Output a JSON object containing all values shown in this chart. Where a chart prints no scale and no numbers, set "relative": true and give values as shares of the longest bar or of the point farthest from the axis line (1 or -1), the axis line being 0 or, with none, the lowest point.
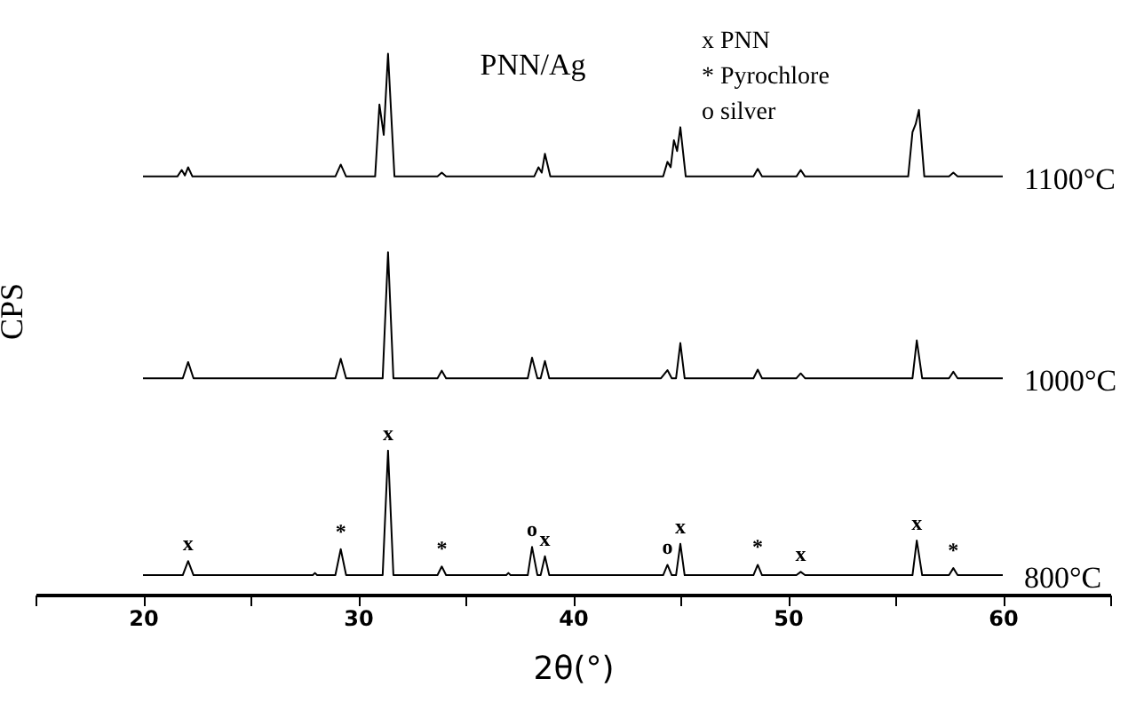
{
  "chart_data": {
    "type": "line",
    "title": "PNN/Ag",
    "xlabel": "2θ(°)",
    "ylabel": "CPS",
    "relative": true,
    "xlim": [
      15,
      65
    ],
    "xticks": [
      {
        "value": 15,
        "label": null
      },
      20,
      {
        "value": 25,
        "label": null
      },
      30,
      {
        "value": 35,
        "label": null
      },
      40,
      {
        "value": 45,
        "label": null
      },
      50,
      {
        "value": 55,
        "label": null
      },
      60,
      {
        "value": 65,
        "label": null
      }
    ],
    "annotations": [
      "x  PNN",
      "*  Pyrochlore",
      "o  silver",
      {
        "text": "x",
        "x": 22.1,
        "y": 0.062
      },
      {
        "text": "*",
        "x": 29.2,
        "y": 0.084
      },
      {
        "text": "x",
        "x": 31.4,
        "y": 0.266
      },
      {
        "text": "*",
        "x": 33.9,
        "y": 0.052
      },
      {
        "text": "o",
        "x": 38.1,
        "y": 0.088
      },
      {
        "text": "x",
        "x": 38.7,
        "y": 0.071
      },
      {
        "text": "o",
        "x": 44.4,
        "y": 0.055
      },
      {
        "text": "x",
        "x": 45.0,
        "y": 0.094
      },
      {
        "text": "*",
        "x": 48.6,
        "y": 0.055
      },
      {
        "text": "x",
        "x": 50.6,
        "y": 0.042
      },
      {
        "text": "x",
        "x": 56.0,
        "y": 0.1
      },
      {
        "text": "*",
        "x": 57.7,
        "y": 0.049
      }
    ],
    "series": [
      {
        "name": "1100°C",
        "color": "#000000",
        "x": [
          20,
          21.6,
          21.8,
          21.95,
          22.1,
          22.3,
          28.95,
          29.2,
          29.45,
          30.8,
          31.0,
          31.2,
          31.4,
          31.7,
          33.7,
          33.9,
          34.1,
          38.2,
          38.4,
          38.55,
          38.7,
          38.95,
          44.2,
          44.4,
          44.55,
          44.7,
          44.85,
          45.0,
          45.25,
          48.4,
          48.6,
          48.8,
          50.4,
          50.6,
          50.8,
          55.6,
          55.8,
          55.95,
          56.1,
          56.35,
          57.5,
          57.7,
          57.9,
          60
        ],
        "values": [
          0.773,
          0.773,
          0.785,
          0.775,
          0.79,
          0.773,
          0.773,
          0.795,
          0.773,
          0.773,
          0.906,
          0.85,
          1.0,
          0.773,
          0.773,
          0.78,
          0.773,
          0.773,
          0.79,
          0.78,
          0.815,
          0.773,
          0.773,
          0.8,
          0.79,
          0.84,
          0.82,
          0.864,
          0.773,
          0.773,
          0.787,
          0.773,
          0.773,
          0.785,
          0.773,
          0.773,
          0.855,
          0.87,
          0.896,
          0.773,
          0.773,
          0.78,
          0.773,
          0.773
        ]
      },
      {
        "name": "1000°C",
        "color": "#000000",
        "x": [
          20,
          21.85,
          22.1,
          22.35,
          28.95,
          29.2,
          29.45,
          31.15,
          31.4,
          31.65,
          33.7,
          33.9,
          34.1,
          37.9,
          38.1,
          38.35,
          38.5,
          38.7,
          38.9,
          44.1,
          44.4,
          44.6,
          44.8,
          45.0,
          45.2,
          48.4,
          48.6,
          48.8,
          50.4,
          50.6,
          50.8,
          55.8,
          56.0,
          56.25,
          57.5,
          57.7,
          57.9,
          60
        ],
        "values": [
          0.4,
          0.4,
          0.43,
          0.4,
          0.4,
          0.436,
          0.4,
          0.4,
          0.633,
          0.4,
          0.4,
          0.414,
          0.4,
          0.4,
          0.438,
          0.4,
          0.4,
          0.432,
          0.4,
          0.4,
          0.415,
          0.4,
          0.4,
          0.465,
          0.4,
          0.4,
          0.416,
          0.4,
          0.4,
          0.409,
          0.4,
          0.4,
          0.47,
          0.4,
          0.4,
          0.412,
          0.4,
          0.4
        ]
      },
      {
        "name": "800°C",
        "color": "#000000",
        "x": [
          20,
          21.85,
          22.1,
          22.35,
          27.9,
          28.0,
          28.1,
          28.95,
          29.2,
          29.45,
          31.15,
          31.4,
          31.65,
          33.7,
          33.9,
          34.1,
          36.9,
          37.0,
          37.1,
          37.9,
          38.1,
          38.35,
          38.5,
          38.7,
          38.9,
          44.2,
          44.4,
          44.6,
          44.8,
          45.0,
          45.2,
          48.4,
          48.6,
          48.8,
          50.4,
          50.6,
          50.8,
          55.8,
          56.0,
          56.25,
          57.5,
          57.7,
          57.9,
          60
        ],
        "values": [
          0.036,
          0.036,
          0.062,
          0.036,
          0.036,
          0.04,
          0.036,
          0.036,
          0.084,
          0.036,
          0.036,
          0.266,
          0.036,
          0.036,
          0.052,
          0.036,
          0.036,
          0.04,
          0.036,
          0.036,
          0.088,
          0.036,
          0.036,
          0.071,
          0.036,
          0.036,
          0.055,
          0.036,
          0.036,
          0.094,
          0.036,
          0.036,
          0.055,
          0.036,
          0.036,
          0.042,
          0.036,
          0.036,
          0.1,
          0.036,
          0.036,
          0.049,
          0.036,
          0.036
        ]
      }
    ]
  }
}
